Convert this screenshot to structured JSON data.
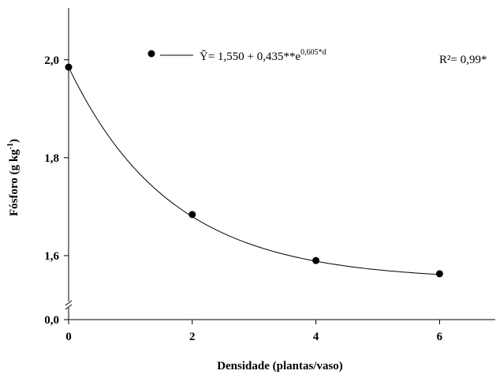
{
  "chart_data": {
    "type": "scatter",
    "x_label": "Densidade (plantas/vaso)",
    "y_label": "Fósforo (g kg",
    "y_label_sup": "-1",
    "y_label_end": ")",
    "x": [
      0,
      2,
      4,
      6
    ],
    "values": [
      1.985,
      1.684,
      1.59,
      1.563
    ],
    "color": "#000000",
    "fit": {
      "a": 1.55,
      "b": 0.435,
      "k": 0.605
    },
    "equation": "Ŷ= 1,550 + 0,435**e",
    "equation_exponent": "0,605*d",
    "r2": "R²= 0,99*",
    "xlim": [
      0,
      6.9
    ],
    "xticks": [
      0,
      2,
      4,
      6
    ],
    "ylim": [
      0,
      2.106
    ],
    "y_break": [
      0,
      1.5
    ],
    "yticks": [
      {
        "value": 0,
        "label": "0,0"
      },
      {
        "value": 1.6,
        "label": "1,6"
      },
      {
        "value": 1.8,
        "label": "1,8"
      },
      {
        "value": 2.0,
        "label": "2,0"
      }
    ]
  }
}
